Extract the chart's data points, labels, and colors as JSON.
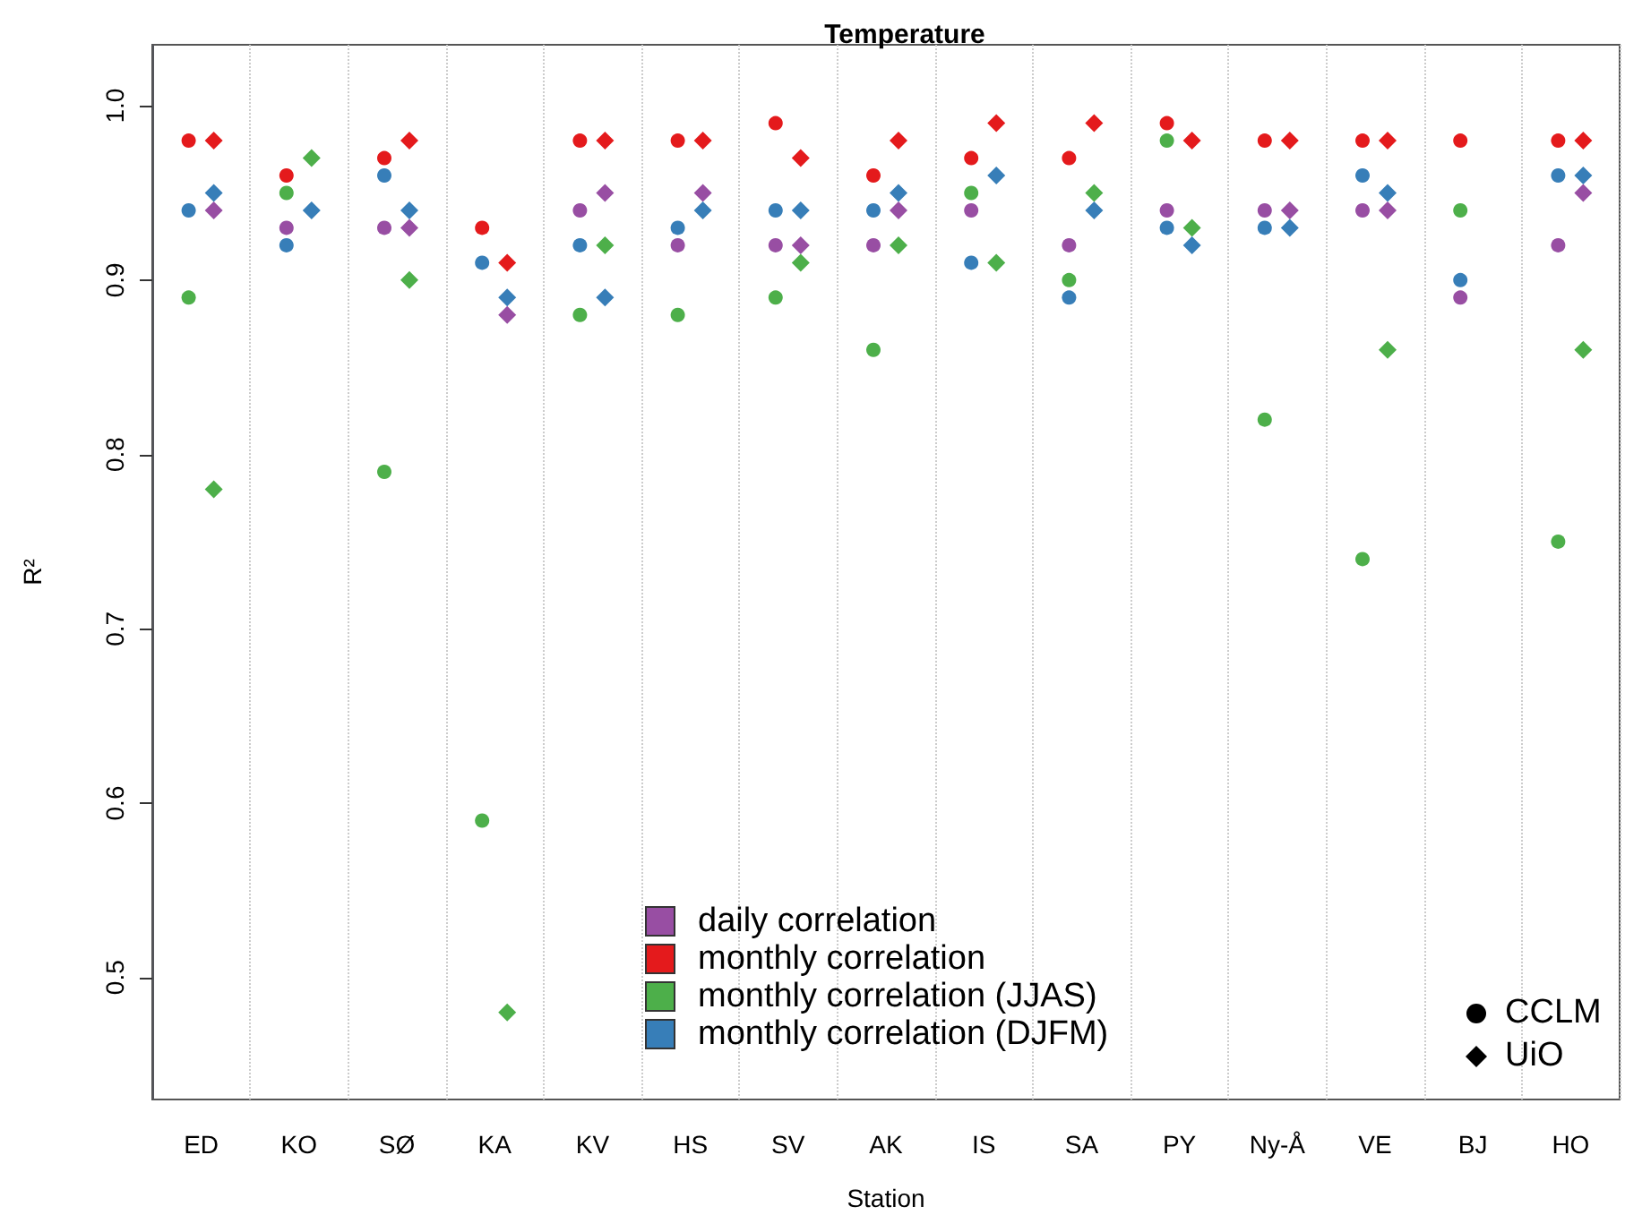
{
  "chart_data": {
    "type": "scatter",
    "title": "Temperature",
    "xlabel": "Station",
    "ylabel": "R²",
    "categories": [
      "ED",
      "KO",
      "SØ",
      "KA",
      "KV",
      "HS",
      "SV",
      "AK",
      "IS",
      "SA",
      "PY",
      "Ny-Å",
      "VE",
      "BJ",
      "HO"
    ],
    "series": [
      {
        "name": "daily correlation",
        "color": "#984ea3",
        "marker": "circle",
        "values": [
          null,
          0.93,
          0.93,
          null,
          0.94,
          0.92,
          0.92,
          0.92,
          0.94,
          0.92,
          0.94,
          0.94,
          0.94,
          0.89,
          0.92
        ]
      },
      {
        "name": "monthly correlation",
        "color": "#e41a1c",
        "marker": "circle",
        "values": [
          0.98,
          0.96,
          0.97,
          0.93,
          0.98,
          0.98,
          0.99,
          0.96,
          0.97,
          0.97,
          0.99,
          0.98,
          0.98,
          0.98,
          0.98
        ]
      },
      {
        "name": "monthly correlation (JJAS)",
        "color": "#4daf4a",
        "marker": "circle",
        "values": [
          0.89,
          0.95,
          0.79,
          0.59,
          0.88,
          0.88,
          0.89,
          0.86,
          0.95,
          0.9,
          0.98,
          0.82,
          0.74,
          0.94,
          0.75
        ]
      },
      {
        "name": "monthly correlation (DJFM)",
        "color": "#377eb8",
        "marker": "circle",
        "values": [
          0.94,
          0.92,
          0.96,
          0.91,
          0.92,
          0.93,
          0.94,
          0.94,
          0.91,
          0.89,
          0.93,
          0.93,
          0.96,
          0.9,
          0.96
        ]
      },
      {
        "color": "#984ea3",
        "marker": "diamond",
        "values": [
          0.94,
          null,
          0.93,
          0.88,
          0.95,
          0.95,
          0.92,
          0.94,
          null,
          null,
          null,
          0.94,
          0.94,
          null,
          0.95
        ]
      },
      {
        "color": "#e41a1c",
        "marker": "diamond",
        "values": [
          0.98,
          null,
          0.98,
          0.91,
          0.98,
          0.98,
          0.97,
          0.98,
          0.99,
          0.99,
          0.98,
          0.98,
          0.98,
          null,
          0.98
        ]
      },
      {
        "color": "#4daf4a",
        "marker": "diamond",
        "values": [
          0.78,
          0.97,
          0.9,
          0.48,
          0.92,
          null,
          0.91,
          0.92,
          0.91,
          0.95,
          0.93,
          null,
          0.86,
          null,
          0.86
        ]
      },
      {
        "color": "#377eb8",
        "marker": "diamond",
        "values": [
          0.95,
          0.94,
          0.94,
          0.89,
          0.89,
          0.94,
          0.94,
          0.95,
          0.96,
          0.94,
          0.92,
          0.93,
          0.95,
          null,
          0.96
        ]
      }
    ],
    "annotations": [
      "CCLM",
      "UiO"
    ],
    "ylim": [
      0.43,
      1.035
    ],
    "yticks": [
      0.5,
      0.6,
      0.7,
      0.8,
      0.9,
      {
        "value": 1,
        "label": "1.0"
      }
    ],
    "grid": "x",
    "legend": "bottom"
  }
}
